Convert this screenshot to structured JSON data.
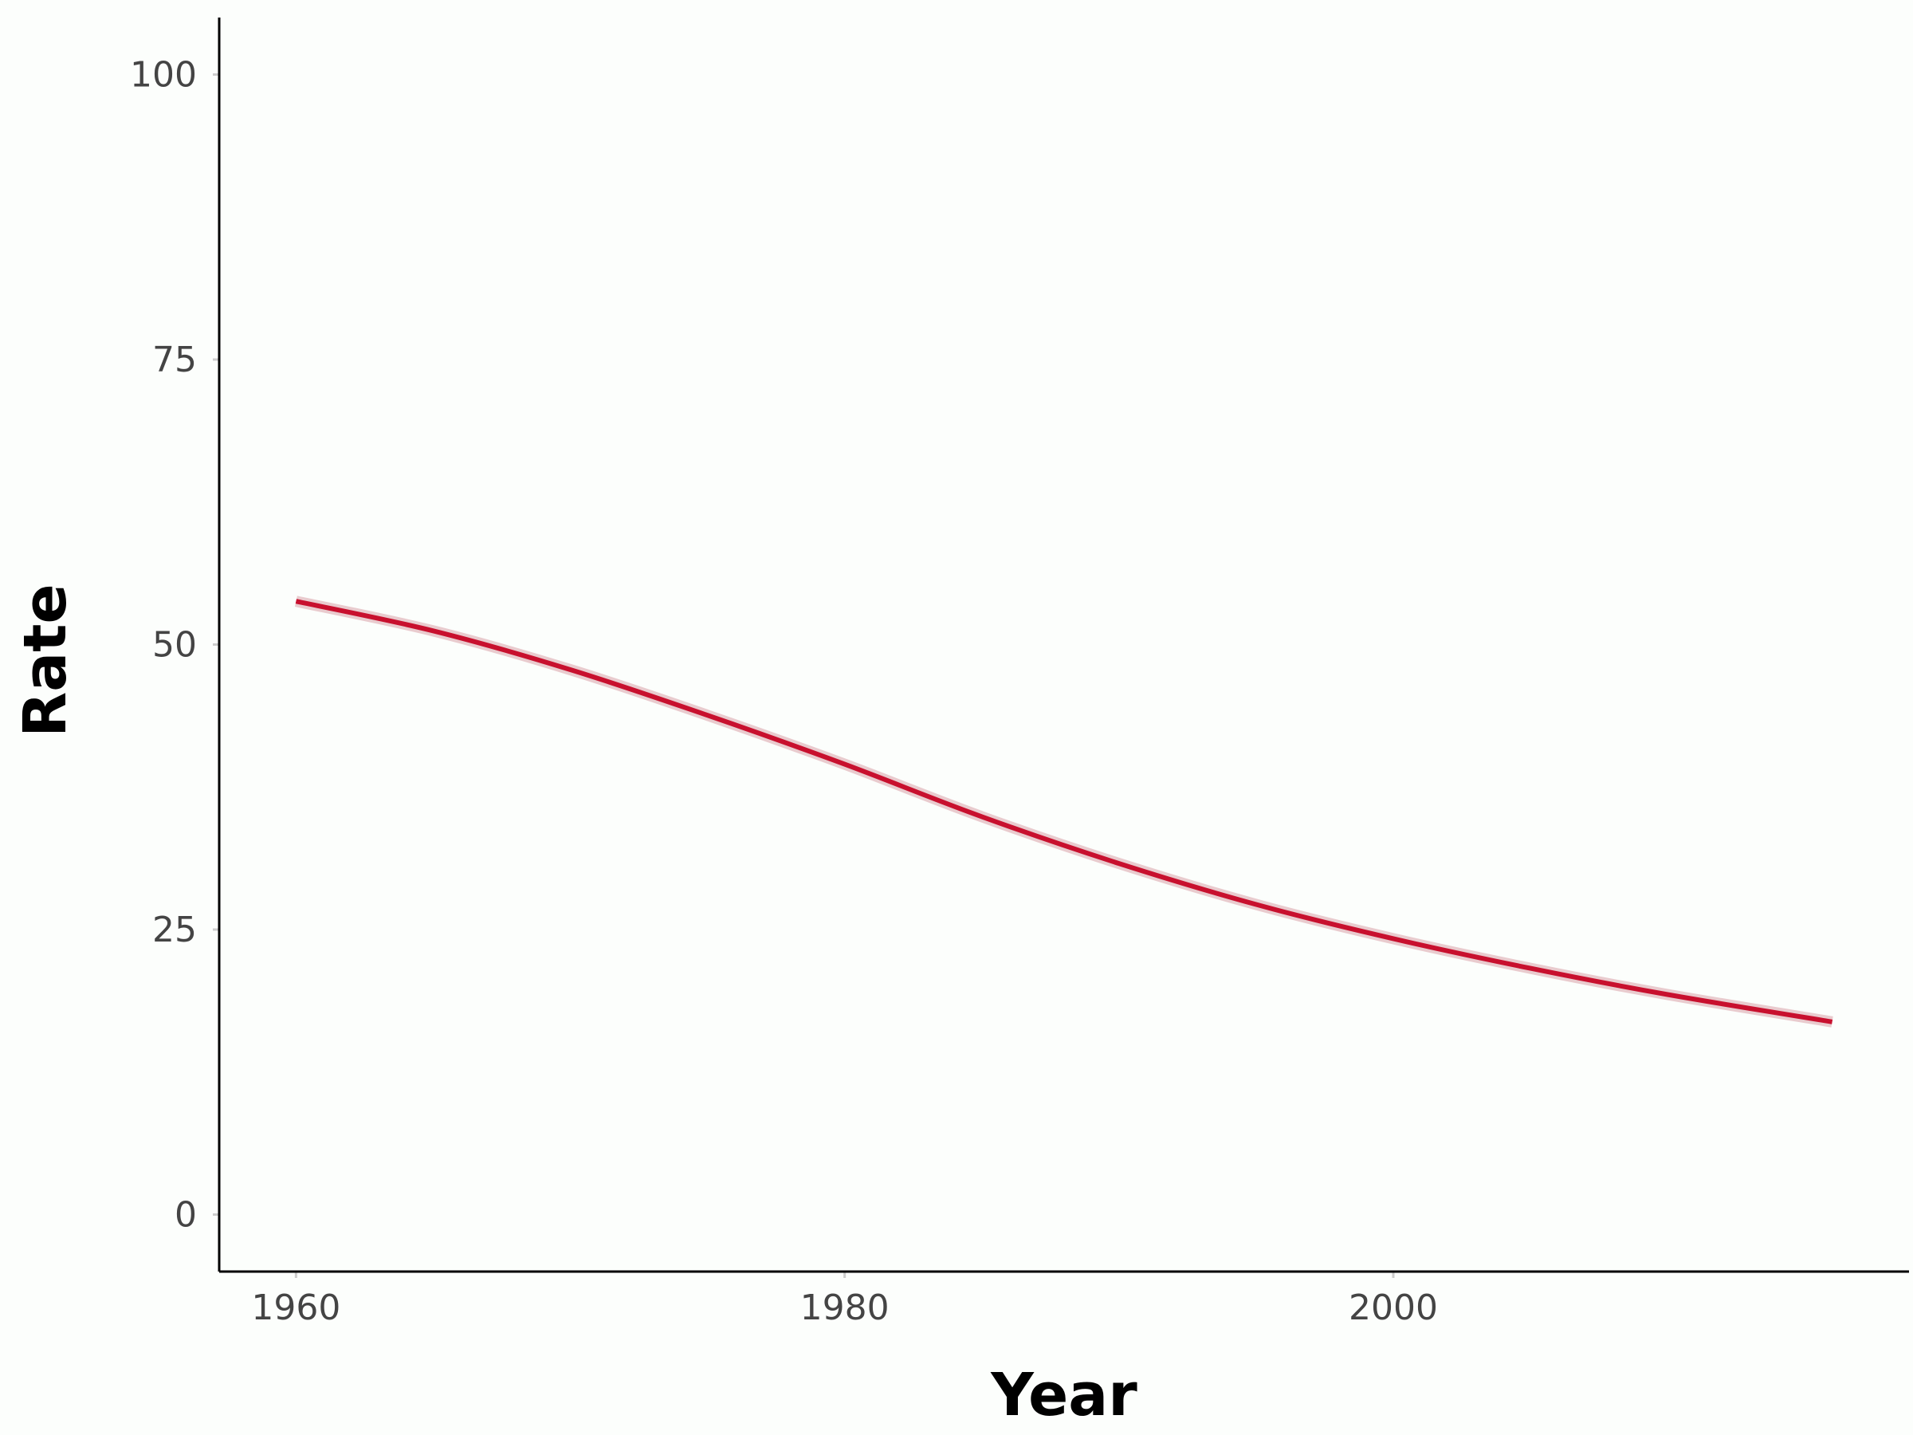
{
  "chart_data": {
    "type": "line",
    "title": "",
    "xlabel": "Year",
    "ylabel": "Rate",
    "xlim": [
      1957.2,
      2018.8
    ],
    "ylim": [
      -5,
      105
    ],
    "x_ticks": [
      1960,
      1980,
      2000
    ],
    "y_ticks": [
      0,
      25,
      50,
      75,
      100
    ],
    "grid": false,
    "legend": "none",
    "series": [
      {
        "color": "#c8102e",
        "x": [
          1960,
          1965,
          1970,
          1975,
          1980,
          1985,
          1990,
          1995,
          2000,
          2005,
          2010,
          2016
        ],
        "y": [
          53.8,
          51.2,
          47.8,
          43.8,
          39.5,
          34.9,
          30.8,
          27.2,
          24.2,
          21.6,
          19.3,
          16.9
        ]
      }
    ]
  }
}
